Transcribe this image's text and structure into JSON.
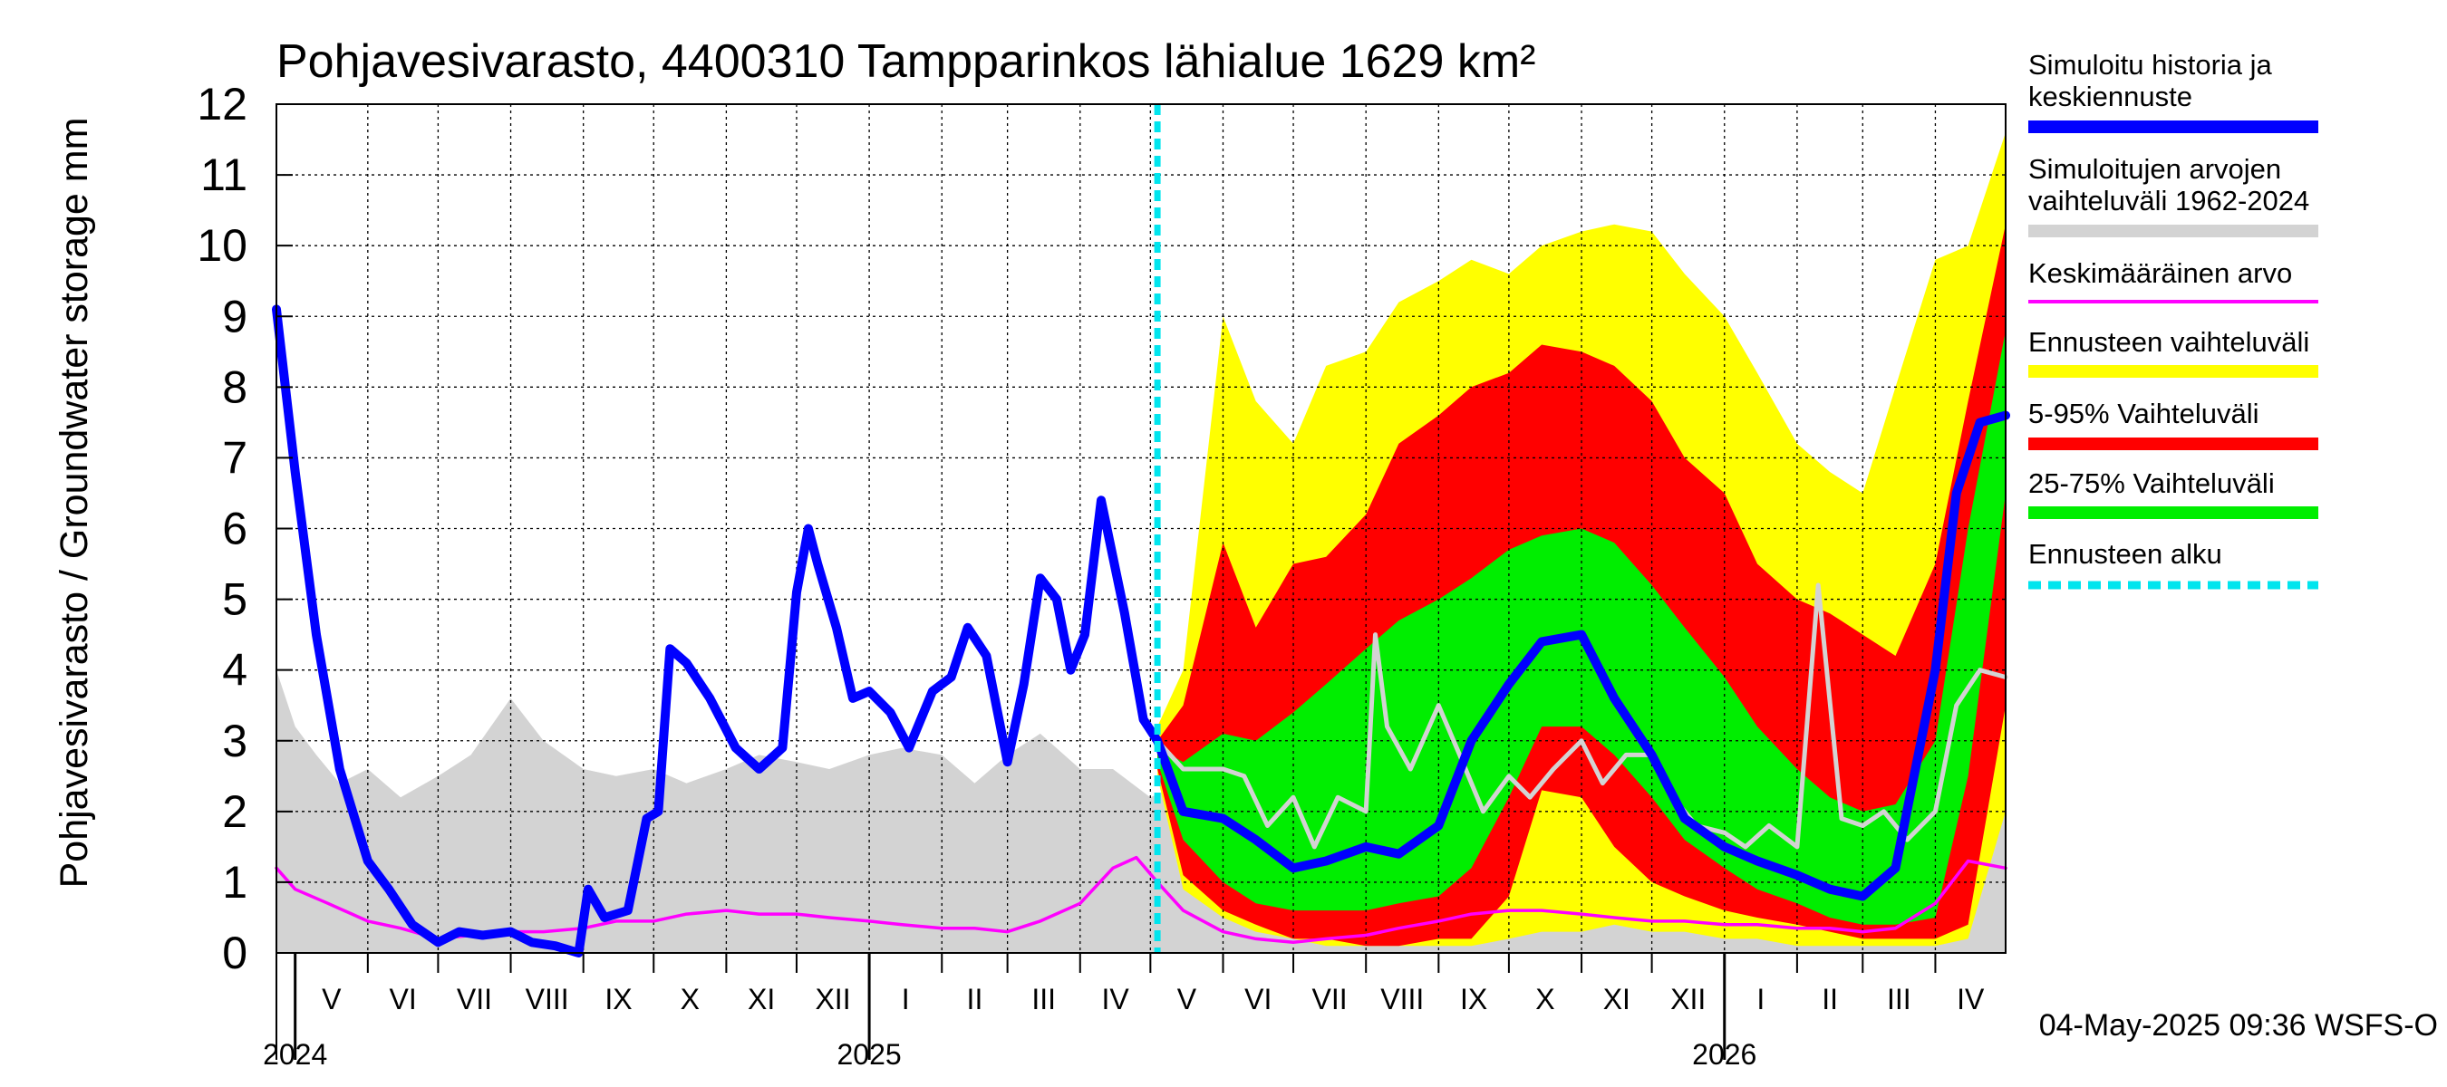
{
  "chart_data": {
    "type": "area",
    "title": "Pohjavesivarasto, 4400310 Tampparinkos lähialue 1629 km²",
    "ylabel": "Pohjavesivarasto / Groundwater storage   mm",
    "footer": "04-May-2025 09:36 WSFS-O",
    "x_range": [
      "2024-04-23",
      "2026-05-01"
    ],
    "ylim": [
      0,
      12
    ],
    "y_ticks": [
      0,
      1,
      2,
      3,
      4,
      5,
      6,
      7,
      8,
      9,
      10,
      11,
      12
    ],
    "forecast_start": "2025-05-04",
    "grid": true,
    "month_labels": [
      {
        "label": "V",
        "start": "2024-05-01",
        "end": "2024-06-01"
      },
      {
        "label": "VI",
        "start": "2024-06-01",
        "end": "2024-07-01"
      },
      {
        "label": "VII",
        "start": "2024-07-01",
        "end": "2024-08-01"
      },
      {
        "label": "VIII",
        "start": "2024-08-01",
        "end": "2024-09-01"
      },
      {
        "label": "IX",
        "start": "2024-09-01",
        "end": "2024-10-01"
      },
      {
        "label": "X",
        "start": "2024-10-01",
        "end": "2024-11-01"
      },
      {
        "label": "XI",
        "start": "2024-11-01",
        "end": "2024-12-01"
      },
      {
        "label": "XII",
        "start": "2024-12-01",
        "end": "2025-01-01"
      },
      {
        "label": "I",
        "start": "2025-01-01",
        "end": "2025-02-01"
      },
      {
        "label": "II",
        "start": "2025-02-01",
        "end": "2025-03-01"
      },
      {
        "label": "III",
        "start": "2025-03-01",
        "end": "2025-04-01"
      },
      {
        "label": "IV",
        "start": "2025-04-01",
        "end": "2025-05-01"
      },
      {
        "label": "V",
        "start": "2025-05-01",
        "end": "2025-06-01"
      },
      {
        "label": "VI",
        "start": "2025-06-01",
        "end": "2025-07-01"
      },
      {
        "label": "VII",
        "start": "2025-07-01",
        "end": "2025-08-01"
      },
      {
        "label": "VIII",
        "start": "2025-08-01",
        "end": "2025-09-01"
      },
      {
        "label": "IX",
        "start": "2025-09-01",
        "end": "2025-10-01"
      },
      {
        "label": "X",
        "start": "2025-10-01",
        "end": "2025-11-01"
      },
      {
        "label": "XI",
        "start": "2025-11-01",
        "end": "2025-12-01"
      },
      {
        "label": "XII",
        "start": "2025-12-01",
        "end": "2026-01-01"
      },
      {
        "label": "I",
        "start": "2026-01-01",
        "end": "2026-02-01"
      },
      {
        "label": "II",
        "start": "2026-02-01",
        "end": "2026-03-01"
      },
      {
        "label": "III",
        "start": "2026-03-01",
        "end": "2026-04-01"
      },
      {
        "label": "IV",
        "start": "2026-04-01",
        "end": "2026-05-01"
      }
    ],
    "year_labels": [
      {
        "label": "2024",
        "date": "2024-05-01"
      },
      {
        "label": "2025",
        "date": "2025-01-01"
      },
      {
        "label": "2026",
        "date": "2026-01-01"
      }
    ],
    "legend": [
      {
        "label": "Simuloitu historia ja keskiennuste",
        "color": "#0000ff",
        "style": "thick"
      },
      {
        "label": "Simuloitujen arvojen vaihteluväli 1962-2024",
        "color": "#d3d3d3",
        "style": "thick"
      },
      {
        "label": "Keskimääräinen arvo",
        "color": "#ff00ff",
        "style": "thin"
      },
      {
        "label": "Ennusteen vaihteluväli",
        "color": "#ffff00",
        "style": "thick"
      },
      {
        "label": "5-95% Vaihteluväli",
        "color": "#ff0000",
        "style": "thick"
      },
      {
        "label": "25-75% Vaihteluväli",
        "color": "#00ee00",
        "style": "thick"
      },
      {
        "label": "Ennusteen alku",
        "color": "#00e5ee",
        "style": "dashed"
      }
    ],
    "series": [
      {
        "name": "Simuloitujen arvojen vaihteluväli 1962-2024",
        "kind": "band",
        "color": "#d3d3d3",
        "x": [
          "2024-04-23",
          "2024-05-01",
          "2024-05-10",
          "2024-05-20",
          "2024-06-01",
          "2024-06-15",
          "2024-07-01",
          "2024-07-15",
          "2024-08-01",
          "2024-08-15",
          "2024-09-01",
          "2024-09-15",
          "2024-10-01",
          "2024-10-15",
          "2024-11-01",
          "2024-11-15",
          "2024-12-01",
          "2024-12-15",
          "2025-01-01",
          "2025-01-15",
          "2025-02-01",
          "2025-02-15",
          "2025-03-01",
          "2025-03-15",
          "2025-04-01",
          "2025-04-15",
          "2025-05-01",
          "2025-05-15",
          "2025-06-01",
          "2025-06-15",
          "2025-07-01",
          "2025-07-15",
          "2025-08-01",
          "2025-08-15",
          "2025-09-01",
          "2025-09-15",
          "2025-10-01",
          "2025-10-15",
          "2025-11-01",
          "2025-11-15",
          "2025-12-01",
          "2025-12-15",
          "2026-01-01",
          "2026-01-15",
          "2026-02-01",
          "2026-02-15",
          "2026-03-01",
          "2026-03-15",
          "2026-04-01",
          "2026-04-15",
          "2026-05-01"
        ],
        "low": [
          0,
          0,
          0,
          0,
          0,
          0,
          0,
          0,
          0,
          0,
          0,
          0,
          0,
          0,
          0,
          0,
          0,
          0,
          0,
          0,
          0,
          0,
          0,
          0,
          0,
          0,
          0,
          0,
          0,
          0,
          0,
          0,
          0,
          0,
          0,
          0,
          0,
          0,
          0,
          0,
          0,
          0,
          0,
          0,
          0,
          0,
          0,
          0,
          0,
          0,
          0
        ],
        "high": [
          4.0,
          3.2,
          2.8,
          2.4,
          2.6,
          2.2,
          2.5,
          2.8,
          3.6,
          3.0,
          2.6,
          2.5,
          2.6,
          2.4,
          2.6,
          2.8,
          2.7,
          2.6,
          2.8,
          2.9,
          2.8,
          2.4,
          2.8,
          3.1,
          2.6,
          2.6,
          2.2,
          2.4,
          2.3,
          2.2,
          2.0,
          2.1,
          1.9,
          1.9,
          2.0,
          2.1,
          2.0,
          2.4,
          2.2,
          2.3,
          2.0,
          2.2,
          1.9,
          2.0,
          1.8,
          1.8,
          1.6,
          1.7,
          1.9,
          2.3,
          2.2
        ]
      },
      {
        "name": "Ennusteen vaihteluväli",
        "kind": "band",
        "color": "#ffff00",
        "x": [
          "2025-05-04",
          "2025-05-15",
          "2025-06-01",
          "2025-06-15",
          "2025-07-01",
          "2025-07-15",
          "2025-08-01",
          "2025-08-15",
          "2025-09-01",
          "2025-09-15",
          "2025-10-01",
          "2025-10-15",
          "2025-11-01",
          "2025-11-15",
          "2025-12-01",
          "2025-12-15",
          "2026-01-01",
          "2026-01-15",
          "2026-02-01",
          "2026-02-15",
          "2026-03-01",
          "2026-03-15",
          "2026-04-01",
          "2026-04-15",
          "2026-05-01"
        ],
        "low": [
          2.5,
          0.9,
          0.5,
          0.3,
          0.2,
          0.1,
          0.1,
          0.1,
          0.1,
          0.1,
          0.2,
          0.3,
          0.3,
          0.4,
          0.3,
          0.3,
          0.2,
          0.2,
          0.1,
          0.1,
          0.1,
          0.1,
          0.1,
          0.2,
          2.0
        ],
        "high": [
          3.2,
          4.0,
          9.0,
          7.8,
          7.2,
          8.3,
          8.5,
          9.2,
          9.5,
          9.8,
          9.6,
          10.0,
          10.2,
          10.3,
          10.2,
          9.6,
          9.0,
          8.2,
          7.2,
          6.8,
          6.5,
          8.0,
          9.8,
          10.0,
          11.6
        ]
      },
      {
        "name": "5-95% Vaihteluväli",
        "kind": "band",
        "color": "#ff0000",
        "x": [
          "2025-05-04",
          "2025-05-15",
          "2025-06-01",
          "2025-06-15",
          "2025-07-01",
          "2025-07-15",
          "2025-08-01",
          "2025-08-15",
          "2025-09-01",
          "2025-09-15",
          "2025-10-01",
          "2025-10-15",
          "2025-11-01",
          "2025-11-15",
          "2025-12-01",
          "2025-12-15",
          "2026-01-01",
          "2026-01-15",
          "2026-02-01",
          "2026-02-15",
          "2026-03-01",
          "2026-03-15",
          "2026-04-01",
          "2026-04-15",
          "2026-05-01"
        ],
        "low": [
          2.6,
          1.1,
          0.6,
          0.4,
          0.2,
          0.2,
          0.1,
          0.1,
          0.2,
          0.2,
          0.8,
          2.3,
          2.2,
          1.5,
          1.0,
          0.8,
          0.6,
          0.5,
          0.4,
          0.3,
          0.2,
          0.2,
          0.2,
          0.4,
          3.5
        ],
        "high": [
          3.0,
          3.5,
          5.8,
          4.6,
          5.5,
          5.6,
          6.2,
          7.2,
          7.6,
          8.0,
          8.2,
          8.6,
          8.5,
          8.3,
          7.8,
          7.0,
          6.5,
          5.5,
          5.0,
          4.8,
          4.5,
          4.2,
          5.5,
          7.8,
          10.3
        ]
      },
      {
        "name": "25-75% Vaihteluväli",
        "kind": "band",
        "color": "#00ee00",
        "x": [
          "2025-05-04",
          "2025-05-15",
          "2025-06-01",
          "2025-06-15",
          "2025-07-01",
          "2025-07-15",
          "2025-08-01",
          "2025-08-15",
          "2025-09-01",
          "2025-09-15",
          "2025-10-01",
          "2025-10-15",
          "2025-11-01",
          "2025-11-15",
          "2025-12-01",
          "2025-12-15",
          "2026-01-01",
          "2026-01-15",
          "2026-02-01",
          "2026-02-15",
          "2026-03-01",
          "2026-03-15",
          "2026-04-01",
          "2026-04-15",
          "2026-05-01"
        ],
        "low": [
          2.7,
          1.6,
          1.0,
          0.7,
          0.6,
          0.6,
          0.6,
          0.7,
          0.8,
          1.2,
          2.2,
          3.2,
          3.2,
          2.8,
          2.2,
          1.6,
          1.2,
          0.9,
          0.7,
          0.5,
          0.4,
          0.4,
          0.5,
          2.5,
          6.5
        ],
        "high": [
          2.9,
          2.7,
          3.1,
          3.0,
          3.4,
          3.8,
          4.3,
          4.7,
          5.0,
          5.3,
          5.7,
          5.9,
          6.0,
          5.8,
          5.2,
          4.6,
          3.9,
          3.2,
          2.6,
          2.2,
          2.0,
          2.1,
          3.0,
          6.0,
          8.8
        ]
      },
      {
        "name": "Simuloitu historia ja keskiennuste",
        "kind": "line",
        "color": "#0000ff",
        "x": [
          "2024-04-23",
          "2024-05-01",
          "2024-05-10",
          "2024-05-20",
          "2024-06-01",
          "2024-06-10",
          "2024-06-20",
          "2024-07-01",
          "2024-07-10",
          "2024-07-20",
          "2024-08-01",
          "2024-08-10",
          "2024-08-20",
          "2024-08-30",
          "2024-09-03",
          "2024-09-10",
          "2024-09-20",
          "2024-09-28",
          "2024-10-03",
          "2024-10-08",
          "2024-10-15",
          "2024-10-25",
          "2024-11-05",
          "2024-11-15",
          "2024-11-25",
          "2024-12-01",
          "2024-12-06",
          "2024-12-10",
          "2024-12-18",
          "2024-12-25",
          "2025-01-01",
          "2025-01-10",
          "2025-01-18",
          "2025-01-28",
          "2025-02-05",
          "2025-02-12",
          "2025-02-20",
          "2025-03-01",
          "2025-03-08",
          "2025-03-15",
          "2025-03-22",
          "2025-03-28",
          "2025-04-03",
          "2025-04-10",
          "2025-04-20",
          "2025-04-28",
          "2025-05-04",
          "2025-05-15",
          "2025-06-01",
          "2025-06-15",
          "2025-07-01",
          "2025-07-15",
          "2025-08-01",
          "2025-08-15",
          "2025-09-01",
          "2025-09-15",
          "2025-10-01",
          "2025-10-15",
          "2025-11-01",
          "2025-11-15",
          "2025-12-01",
          "2025-12-15",
          "2026-01-01",
          "2026-01-15",
          "2026-02-01",
          "2026-02-15",
          "2026-03-01",
          "2026-03-15",
          "2026-04-01",
          "2026-04-10",
          "2026-04-20",
          "2026-05-01"
        ],
        "values": [
          9.1,
          6.8,
          4.5,
          2.6,
          1.3,
          0.9,
          0.4,
          0.15,
          0.3,
          0.25,
          0.3,
          0.15,
          0.1,
          0.0,
          0.9,
          0.5,
          0.6,
          1.9,
          2.0,
          4.3,
          4.1,
          3.6,
          2.9,
          2.6,
          2.9,
          5.1,
          6.0,
          5.5,
          4.6,
          3.6,
          3.7,
          3.4,
          2.9,
          3.7,
          3.9,
          4.6,
          4.2,
          2.7,
          3.8,
          5.3,
          5.0,
          4.0,
          4.5,
          6.4,
          4.8,
          3.3,
          3.0,
          2.0,
          1.9,
          1.6,
          1.2,
          1.3,
          1.5,
          1.4,
          1.8,
          3.0,
          3.8,
          4.4,
          4.5,
          3.6,
          2.8,
          1.9,
          1.5,
          1.3,
          1.1,
          0.9,
          0.8,
          1.2,
          4.0,
          6.5,
          7.5,
          7.6
        ]
      },
      {
        "name": "Keskimääräinen arvo",
        "kind": "line",
        "color": "#ff00ff",
        "x": [
          "2024-04-23",
          "2024-05-01",
          "2024-05-15",
          "2024-06-01",
          "2024-06-15",
          "2024-07-01",
          "2024-07-15",
          "2024-08-01",
          "2024-08-15",
          "2024-09-01",
          "2024-09-15",
          "2024-10-01",
          "2024-10-15",
          "2024-11-01",
          "2024-11-15",
          "2024-12-01",
          "2024-12-15",
          "2025-01-01",
          "2025-01-15",
          "2025-02-01",
          "2025-02-15",
          "2025-03-01",
          "2025-03-15",
          "2025-04-01",
          "2025-04-15",
          "2025-04-25",
          "2025-05-04",
          "2025-05-15",
          "2025-06-01",
          "2025-06-15",
          "2025-07-01",
          "2025-07-15",
          "2025-08-01",
          "2025-08-15",
          "2025-09-01",
          "2025-09-15",
          "2025-10-01",
          "2025-10-15",
          "2025-11-01",
          "2025-11-15",
          "2025-12-01",
          "2025-12-15",
          "2026-01-01",
          "2026-01-15",
          "2026-02-01",
          "2026-02-15",
          "2026-03-01",
          "2026-03-15",
          "2026-04-01",
          "2026-04-15",
          "2026-05-01"
        ],
        "values": [
          1.2,
          0.9,
          0.7,
          0.45,
          0.35,
          0.2,
          0.25,
          0.3,
          0.3,
          0.35,
          0.45,
          0.45,
          0.55,
          0.6,
          0.55,
          0.55,
          0.5,
          0.45,
          0.4,
          0.35,
          0.35,
          0.3,
          0.45,
          0.7,
          1.2,
          1.35,
          1.0,
          0.6,
          0.3,
          0.2,
          0.15,
          0.2,
          0.25,
          0.35,
          0.45,
          0.55,
          0.6,
          0.6,
          0.55,
          0.5,
          0.45,
          0.45,
          0.4,
          0.4,
          0.35,
          0.35,
          0.3,
          0.35,
          0.7,
          1.3,
          1.2
        ]
      },
      {
        "name": "Ennusteen jäsen",
        "kind": "line",
        "color": "#d3d3d3",
        "x": [
          "2025-05-04",
          "2025-05-15",
          "2025-06-01",
          "2025-06-10",
          "2025-06-20",
          "2025-07-01",
          "2025-07-10",
          "2025-07-20",
          "2025-08-01",
          "2025-08-05",
          "2025-08-10",
          "2025-08-20",
          "2025-09-01",
          "2025-09-10",
          "2025-09-20",
          "2025-10-01",
          "2025-10-10",
          "2025-10-20",
          "2025-11-01",
          "2025-11-10",
          "2025-11-20",
          "2025-12-01",
          "2025-12-10",
          "2025-12-20",
          "2026-01-01",
          "2026-01-10",
          "2026-01-20",
          "2026-02-01",
          "2026-02-10",
          "2026-02-20",
          "2026-03-01",
          "2026-03-10",
          "2026-03-20",
          "2026-04-01",
          "2026-04-10",
          "2026-04-20",
          "2026-05-01"
        ],
        "values": [
          3.0,
          2.6,
          2.6,
          2.5,
          1.8,
          2.2,
          1.5,
          2.2,
          2.0,
          4.5,
          3.2,
          2.6,
          3.5,
          2.8,
          2.0,
          2.5,
          2.2,
          2.6,
          3.0,
          2.4,
          2.8,
          2.8,
          2.2,
          1.8,
          1.7,
          1.5,
          1.8,
          1.5,
          5.2,
          1.9,
          1.8,
          2.0,
          1.6,
          2.0,
          3.5,
          4.0,
          3.9
        ]
      }
    ]
  }
}
